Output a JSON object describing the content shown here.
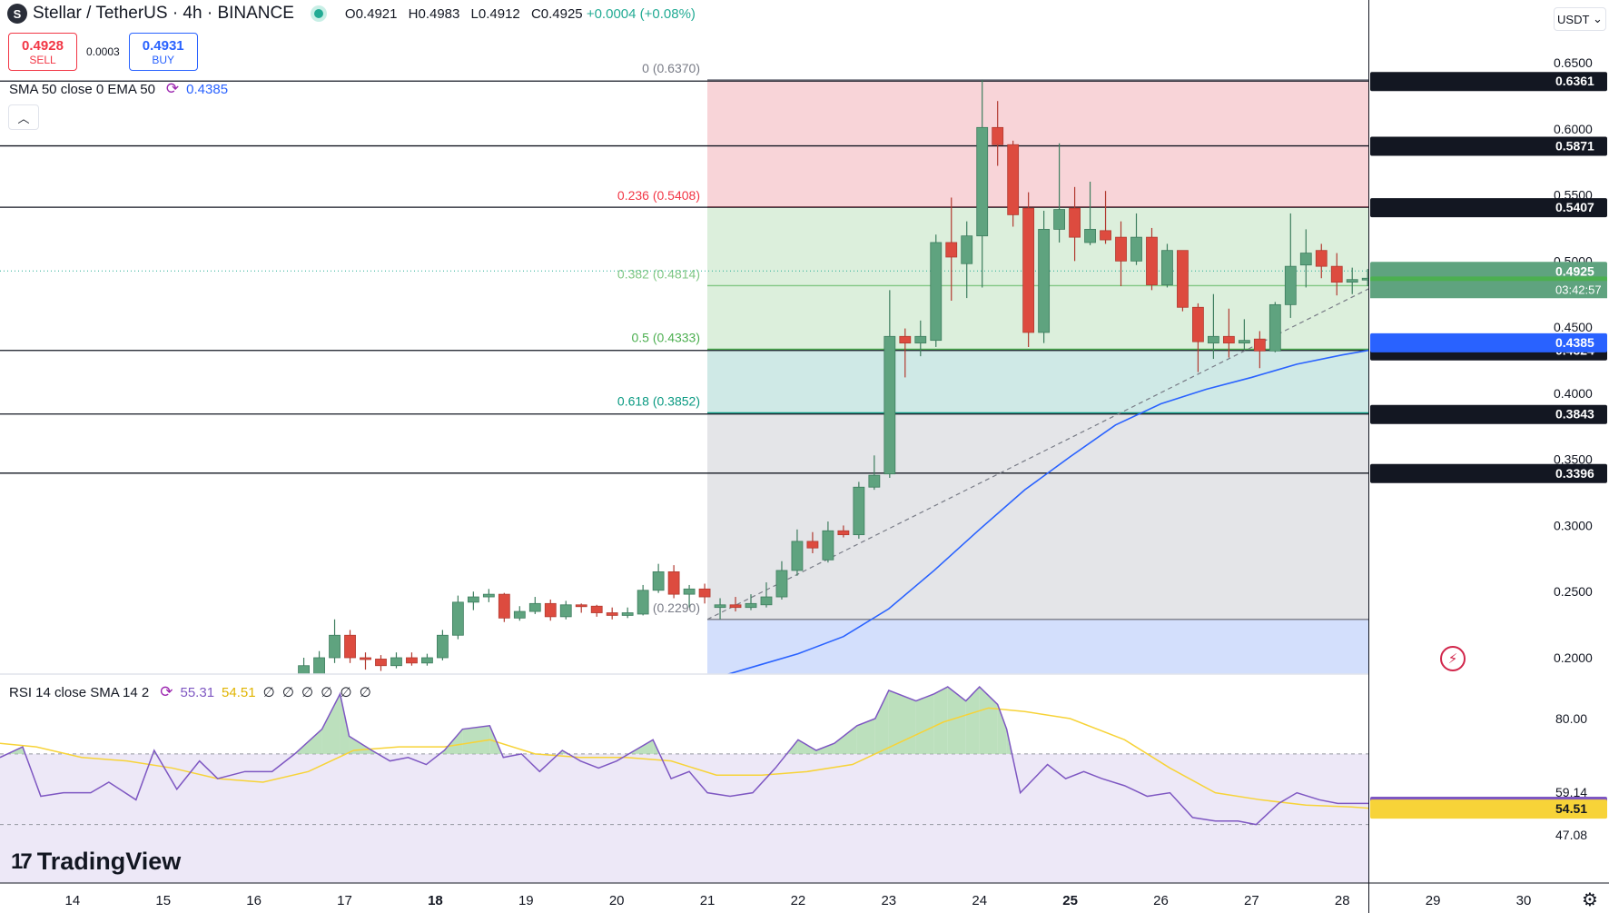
{
  "header": {
    "title": "Stellar / TetherUS · 4h · BINANCE",
    "logo_glyph": "S",
    "ohlc": {
      "o": "O0.4921",
      "h": "H0.4983",
      "l": "L0.4912",
      "c": "C0.4925",
      "chg": "+0.0004 (+0.08%)"
    }
  },
  "trade": {
    "sell_price": "0.4928",
    "sell_label": "SELL",
    "spread": "0.0003",
    "buy_price": "0.4931",
    "buy_label": "BUY"
  },
  "indicator_main": {
    "label": "SMA 50 close 0 EMA 50",
    "value": "0.4385",
    "icon": "refresh-icon"
  },
  "indicator_rsi": {
    "label": "RSI 14 close SMA 14 2",
    "rsi_value": "55.31",
    "sma_value": "54.51",
    "extras": "∅ ∅ ∅ ∅ ∅ ∅",
    "icon": "refresh-icon"
  },
  "currency": "USDT",
  "brand": "TradingView",
  "colors": {
    "up": "#5fa37f",
    "down": "#dd4b3f",
    "sma": "#2962ff",
    "rsi": "#7e57c2",
    "rsi_sma": "#f7d338",
    "fib_red": "#f8d4d8",
    "fib_green": "#dcefdc",
    "fib_teal": "#cfe9e6",
    "fib_gray": "#e4e5e8",
    "fib_blue": "#d3dffc"
  },
  "chart_data": {
    "type": "candlestick",
    "symbol": "XLM/USDT",
    "timeframe": "4h",
    "x_ticks": [
      "14",
      "15",
      "16",
      "17",
      "18",
      "19",
      "20",
      "21",
      "22",
      "23",
      "24",
      "25",
      "26",
      "27",
      "28",
      "29",
      "30"
    ],
    "y_ticks": [
      "0.6500",
      "0.6000",
      "0.5500",
      "0.5000",
      "0.4500",
      "0.4000",
      "0.3500",
      "0.3000",
      "0.2500",
      "0.2000"
    ],
    "ylim": [
      0.187,
      0.6655
    ],
    "last_price": {
      "value": "0.4925",
      "countdown": "03:42:57"
    },
    "fibonacci": [
      {
        "ratio": "0",
        "label": "0 (0.6370)",
        "price": 0.637
      },
      {
        "ratio": "0.236",
        "label": "0.236 (0.5408)",
        "price": 0.5408
      },
      {
        "ratio": "0.382",
        "label": "0.382 (0.4814)",
        "price": 0.4814
      },
      {
        "ratio": "0.5",
        "label": "0.5 (0.4333)",
        "price": 0.4333
      },
      {
        "ratio": "0.618",
        "label": "0.618 (0.3852)",
        "price": 0.3852
      },
      {
        "ratio": "1",
        "label": "1 (0.2290)",
        "price": 0.229
      }
    ],
    "horizontal_levels": [
      {
        "price": 0.6361,
        "label": "0.6361"
      },
      {
        "price": 0.5871,
        "label": "0.5871"
      },
      {
        "price": 0.5407,
        "label": "0.5407"
      },
      {
        "price": 0.4324,
        "label": "0.4324"
      },
      {
        "price": 0.3843,
        "label": "0.3843"
      },
      {
        "price": 0.3396,
        "label": "0.3396"
      }
    ],
    "price_tags": [
      {
        "price": 0.4925,
        "label": "0.4925",
        "kind": "last"
      },
      {
        "price": 0.4814,
        "label": "0.4814",
        "kind": "fib"
      },
      {
        "price": 0.4385,
        "label": "0.4385",
        "kind": "sma"
      }
    ],
    "trendline": [
      {
        "x": 21.0,
        "y": 0.229
      },
      {
        "x": 30.1,
        "y": 0.541
      }
    ],
    "candles": [
      {
        "x": 16.55,
        "o": 0.175,
        "h": 0.2,
        "l": 0.17,
        "c": 0.194
      },
      {
        "x": 16.72,
        "o": 0.182,
        "h": 0.205,
        "l": 0.178,
        "c": 0.2
      },
      {
        "x": 16.89,
        "o": 0.2,
        "h": 0.229,
        "l": 0.196,
        "c": 0.217
      },
      {
        "x": 17.06,
        "o": 0.217,
        "h": 0.221,
        "l": 0.196,
        "c": 0.2
      },
      {
        "x": 17.23,
        "o": 0.2,
        "h": 0.204,
        "l": 0.191,
        "c": 0.199
      },
      {
        "x": 17.4,
        "o": 0.199,
        "h": 0.202,
        "l": 0.19,
        "c": 0.194
      },
      {
        "x": 17.57,
        "o": 0.194,
        "h": 0.204,
        "l": 0.192,
        "c": 0.2
      },
      {
        "x": 17.74,
        "o": 0.2,
        "h": 0.204,
        "l": 0.194,
        "c": 0.196
      },
      {
        "x": 17.91,
        "o": 0.196,
        "h": 0.203,
        "l": 0.194,
        "c": 0.2
      },
      {
        "x": 18.08,
        "o": 0.2,
        "h": 0.221,
        "l": 0.198,
        "c": 0.217
      },
      {
        "x": 18.25,
        "o": 0.217,
        "h": 0.247,
        "l": 0.214,
        "c": 0.242
      },
      {
        "x": 18.42,
        "o": 0.242,
        "h": 0.25,
        "l": 0.236,
        "c": 0.246
      },
      {
        "x": 18.59,
        "o": 0.246,
        "h": 0.252,
        "l": 0.242,
        "c": 0.248
      },
      {
        "x": 18.76,
        "o": 0.248,
        "h": 0.249,
        "l": 0.227,
        "c": 0.23
      },
      {
        "x": 18.93,
        "o": 0.23,
        "h": 0.239,
        "l": 0.228,
        "c": 0.235
      },
      {
        "x": 19.1,
        "o": 0.235,
        "h": 0.246,
        "l": 0.233,
        "c": 0.241
      },
      {
        "x": 19.27,
        "o": 0.241,
        "h": 0.244,
        "l": 0.228,
        "c": 0.231
      },
      {
        "x": 19.44,
        "o": 0.231,
        "h": 0.243,
        "l": 0.229,
        "c": 0.24
      },
      {
        "x": 19.61,
        "o": 0.24,
        "h": 0.241,
        "l": 0.234,
        "c": 0.239
      },
      {
        "x": 19.78,
        "o": 0.239,
        "h": 0.24,
        "l": 0.231,
        "c": 0.234
      },
      {
        "x": 19.95,
        "o": 0.234,
        "h": 0.238,
        "l": 0.229,
        "c": 0.232
      },
      {
        "x": 20.12,
        "o": 0.232,
        "h": 0.238,
        "l": 0.23,
        "c": 0.234
      },
      {
        "x": 20.29,
        "o": 0.233,
        "h": 0.255,
        "l": 0.232,
        "c": 0.251
      },
      {
        "x": 20.46,
        "o": 0.251,
        "h": 0.271,
        "l": 0.249,
        "c": 0.265
      },
      {
        "x": 20.63,
        "o": 0.265,
        "h": 0.27,
        "l": 0.245,
        "c": 0.248
      },
      {
        "x": 20.8,
        "o": 0.248,
        "h": 0.255,
        "l": 0.238,
        "c": 0.252
      },
      {
        "x": 20.97,
        "o": 0.252,
        "h": 0.256,
        "l": 0.241,
        "c": 0.246
      },
      {
        "x": 21.14,
        "o": 0.238,
        "h": 0.245,
        "l": 0.229,
        "c": 0.24
      },
      {
        "x": 21.31,
        "o": 0.24,
        "h": 0.246,
        "l": 0.235,
        "c": 0.238
      },
      {
        "x": 21.48,
        "o": 0.238,
        "h": 0.248,
        "l": 0.236,
        "c": 0.241
      },
      {
        "x": 21.65,
        "o": 0.24,
        "h": 0.257,
        "l": 0.238,
        "c": 0.246
      },
      {
        "x": 21.82,
        "o": 0.246,
        "h": 0.273,
        "l": 0.244,
        "c": 0.266
      },
      {
        "x": 21.99,
        "o": 0.266,
        "h": 0.297,
        "l": 0.262,
        "c": 0.288
      },
      {
        "x": 22.16,
        "o": 0.288,
        "h": 0.295,
        "l": 0.279,
        "c": 0.283
      },
      {
        "x": 22.33,
        "o": 0.274,
        "h": 0.303,
        "l": 0.272,
        "c": 0.296
      },
      {
        "x": 22.5,
        "o": 0.296,
        "h": 0.3,
        "l": 0.291,
        "c": 0.293
      },
      {
        "x": 22.67,
        "o": 0.293,
        "h": 0.333,
        "l": 0.29,
        "c": 0.329
      },
      {
        "x": 22.84,
        "o": 0.329,
        "h": 0.353,
        "l": 0.327,
        "c": 0.338
      },
      {
        "x": 23.01,
        "o": 0.339,
        "h": 0.478,
        "l": 0.336,
        "c": 0.443
      },
      {
        "x": 23.18,
        "o": 0.443,
        "h": 0.449,
        "l": 0.412,
        "c": 0.438
      },
      {
        "x": 23.35,
        "o": 0.438,
        "h": 0.455,
        "l": 0.428,
        "c": 0.443
      },
      {
        "x": 23.52,
        "o": 0.44,
        "h": 0.52,
        "l": 0.435,
        "c": 0.514
      },
      {
        "x": 23.69,
        "o": 0.514,
        "h": 0.548,
        "l": 0.47,
        "c": 0.503
      },
      {
        "x": 23.86,
        "o": 0.498,
        "h": 0.53,
        "l": 0.472,
        "c": 0.519
      },
      {
        "x": 24.03,
        "o": 0.519,
        "h": 0.637,
        "l": 0.48,
        "c": 0.601
      },
      {
        "x": 24.2,
        "o": 0.601,
        "h": 0.621,
        "l": 0.572,
        "c": 0.588
      },
      {
        "x": 24.37,
        "o": 0.588,
        "h": 0.591,
        "l": 0.526,
        "c": 0.535
      },
      {
        "x": 24.54,
        "o": 0.54,
        "h": 0.552,
        "l": 0.435,
        "c": 0.446
      },
      {
        "x": 24.71,
        "o": 0.446,
        "h": 0.538,
        "l": 0.438,
        "c": 0.524
      },
      {
        "x": 24.88,
        "o": 0.524,
        "h": 0.589,
        "l": 0.514,
        "c": 0.539
      },
      {
        "x": 25.05,
        "o": 0.54,
        "h": 0.556,
        "l": 0.5,
        "c": 0.518
      },
      {
        "x": 25.22,
        "o": 0.514,
        "h": 0.56,
        "l": 0.512,
        "c": 0.524
      },
      {
        "x": 25.39,
        "o": 0.523,
        "h": 0.553,
        "l": 0.513,
        "c": 0.516
      },
      {
        "x": 25.56,
        "o": 0.518,
        "h": 0.53,
        "l": 0.481,
        "c": 0.5
      },
      {
        "x": 25.73,
        "o": 0.5,
        "h": 0.536,
        "l": 0.497,
        "c": 0.518
      },
      {
        "x": 25.9,
        "o": 0.518,
        "h": 0.525,
        "l": 0.478,
        "c": 0.482
      },
      {
        "x": 26.07,
        "o": 0.482,
        "h": 0.513,
        "l": 0.48,
        "c": 0.508
      },
      {
        "x": 26.24,
        "o": 0.508,
        "h": 0.508,
        "l": 0.462,
        "c": 0.465
      },
      {
        "x": 26.41,
        "o": 0.465,
        "h": 0.468,
        "l": 0.416,
        "c": 0.439
      },
      {
        "x": 26.58,
        "o": 0.438,
        "h": 0.475,
        "l": 0.426,
        "c": 0.443
      },
      {
        "x": 26.75,
        "o": 0.443,
        "h": 0.464,
        "l": 0.427,
        "c": 0.438
      },
      {
        "x": 26.92,
        "o": 0.438,
        "h": 0.456,
        "l": 0.433,
        "c": 0.44
      },
      {
        "x": 27.09,
        "o": 0.441,
        "h": 0.447,
        "l": 0.419,
        "c": 0.432
      },
      {
        "x": 27.26,
        "o": 0.432,
        "h": 0.469,
        "l": 0.431,
        "c": 0.467
      },
      {
        "x": 27.43,
        "o": 0.467,
        "h": 0.536,
        "l": 0.457,
        "c": 0.496
      },
      {
        "x": 27.6,
        "o": 0.497,
        "h": 0.524,
        "l": 0.48,
        "c": 0.506
      },
      {
        "x": 27.77,
        "o": 0.508,
        "h": 0.513,
        "l": 0.487,
        "c": 0.496
      },
      {
        "x": 27.94,
        "o": 0.496,
        "h": 0.506,
        "l": 0.474,
        "c": 0.484
      },
      {
        "x": 28.11,
        "o": 0.484,
        "h": 0.495,
        "l": 0.475,
        "c": 0.486
      },
      {
        "x": 28.28,
        "o": 0.486,
        "h": 0.494,
        "l": 0.481,
        "c": 0.487
      },
      {
        "x": 28.45,
        "o": 0.487,
        "h": 0.489,
        "l": 0.473,
        "c": 0.484
      },
      {
        "x": 28.62,
        "o": 0.481,
        "h": 0.485,
        "l": 0.462,
        "c": 0.464
      },
      {
        "x": 28.79,
        "o": 0.464,
        "h": 0.48,
        "l": 0.462,
        "c": 0.478
      },
      {
        "x": 28.96,
        "o": 0.478,
        "h": 0.506,
        "l": 0.476,
        "c": 0.499
      },
      {
        "x": 29.13,
        "o": 0.499,
        "h": 0.511,
        "l": 0.489,
        "c": 0.491
      },
      {
        "x": 29.3,
        "o": 0.4921,
        "h": 0.4983,
        "l": 0.4912,
        "c": 0.4925
      }
    ],
    "sma50": [
      {
        "x": 21.2,
        "y": 0.187
      },
      {
        "x": 21.5,
        "y": 0.193
      },
      {
        "x": 22.0,
        "y": 0.203
      },
      {
        "x": 22.5,
        "y": 0.216
      },
      {
        "x": 23.0,
        "y": 0.237
      },
      {
        "x": 23.5,
        "y": 0.266
      },
      {
        "x": 24.0,
        "y": 0.297
      },
      {
        "x": 24.5,
        "y": 0.327
      },
      {
        "x": 25.0,
        "y": 0.352
      },
      {
        "x": 25.5,
        "y": 0.376
      },
      {
        "x": 26.0,
        "y": 0.392
      },
      {
        "x": 26.5,
        "y": 0.403
      },
      {
        "x": 27.0,
        "y": 0.412
      },
      {
        "x": 27.5,
        "y": 0.422
      },
      {
        "x": 28.0,
        "y": 0.429
      },
      {
        "x": 28.5,
        "y": 0.435
      },
      {
        "x": 29.0,
        "y": 0.439
      },
      {
        "x": 29.4,
        "y": 0.4385
      }
    ],
    "rsi_panel": {
      "y_ticks": [
        "80.00",
        "59.14",
        "47.08"
      ],
      "ylim": [
        29.5,
        92.0
      ],
      "band_upper": 70,
      "band_lower": 50,
      "band_bottom": 30,
      "tags": [
        {
          "value": 55.31,
          "label": "55.31",
          "kind": "rsi"
        },
        {
          "value": 54.51,
          "label": "54.51",
          "kind": "sma"
        }
      ],
      "rsi": [
        {
          "x": 13.2,
          "y": 69
        },
        {
          "x": 13.45,
          "y": 72
        },
        {
          "x": 13.65,
          "y": 58
        },
        {
          "x": 13.9,
          "y": 59
        },
        {
          "x": 14.2,
          "y": 59
        },
        {
          "x": 14.4,
          "y": 62
        },
        {
          "x": 14.7,
          "y": 57
        },
        {
          "x": 14.9,
          "y": 71
        },
        {
          "x": 15.15,
          "y": 60
        },
        {
          "x": 15.4,
          "y": 68
        },
        {
          "x": 15.6,
          "y": 63
        },
        {
          "x": 15.9,
          "y": 65
        },
        {
          "x": 16.2,
          "y": 65
        },
        {
          "x": 16.45,
          "y": 70
        },
        {
          "x": 16.75,
          "y": 77
        },
        {
          "x": 16.95,
          "y": 87
        },
        {
          "x": 17.05,
          "y": 75
        },
        {
          "x": 17.3,
          "y": 71
        },
        {
          "x": 17.5,
          "y": 68
        },
        {
          "x": 17.7,
          "y": 69
        },
        {
          "x": 17.9,
          "y": 67
        },
        {
          "x": 18.1,
          "y": 71
        },
        {
          "x": 18.3,
          "y": 77
        },
        {
          "x": 18.6,
          "y": 78
        },
        {
          "x": 18.75,
          "y": 69
        },
        {
          "x": 18.95,
          "y": 70
        },
        {
          "x": 19.15,
          "y": 65
        },
        {
          "x": 19.4,
          "y": 71
        },
        {
          "x": 19.6,
          "y": 68
        },
        {
          "x": 19.8,
          "y": 66
        },
        {
          "x": 20.0,
          "y": 68
        },
        {
          "x": 20.2,
          "y": 71
        },
        {
          "x": 20.4,
          "y": 74
        },
        {
          "x": 20.6,
          "y": 63
        },
        {
          "x": 20.8,
          "y": 65
        },
        {
          "x": 21.0,
          "y": 59
        },
        {
          "x": 21.25,
          "y": 58
        },
        {
          "x": 21.5,
          "y": 59
        },
        {
          "x": 21.75,
          "y": 66
        },
        {
          "x": 22.0,
          "y": 74
        },
        {
          "x": 22.2,
          "y": 71
        },
        {
          "x": 22.4,
          "y": 73
        },
        {
          "x": 22.65,
          "y": 78
        },
        {
          "x": 22.85,
          "y": 80
        },
        {
          "x": 23.0,
          "y": 88
        },
        {
          "x": 23.3,
          "y": 85
        },
        {
          "x": 23.5,
          "y": 87
        },
        {
          "x": 23.65,
          "y": 89
        },
        {
          "x": 23.85,
          "y": 85
        },
        {
          "x": 24.0,
          "y": 89
        },
        {
          "x": 24.2,
          "y": 84
        },
        {
          "x": 24.3,
          "y": 77
        },
        {
          "x": 24.45,
          "y": 59
        },
        {
          "x": 24.75,
          "y": 67
        },
        {
          "x": 24.95,
          "y": 63
        },
        {
          "x": 25.15,
          "y": 65
        },
        {
          "x": 25.35,
          "y": 63
        },
        {
          "x": 25.6,
          "y": 61
        },
        {
          "x": 25.85,
          "y": 58
        },
        {
          "x": 26.1,
          "y": 59
        },
        {
          "x": 26.35,
          "y": 52
        },
        {
          "x": 26.6,
          "y": 51
        },
        {
          "x": 26.85,
          "y": 51
        },
        {
          "x": 27.05,
          "y": 50
        },
        {
          "x": 27.3,
          "y": 56
        },
        {
          "x": 27.5,
          "y": 59
        },
        {
          "x": 27.75,
          "y": 57
        },
        {
          "x": 27.95,
          "y": 56
        },
        {
          "x": 28.2,
          "y": 56
        },
        {
          "x": 28.45,
          "y": 56
        },
        {
          "x": 28.6,
          "y": 53
        },
        {
          "x": 28.8,
          "y": 55
        },
        {
          "x": 28.95,
          "y": 57
        },
        {
          "x": 29.1,
          "y": 55
        },
        {
          "x": 29.3,
          "y": 55.3
        }
      ],
      "rsi_sma": [
        {
          "x": 13.2,
          "y": 73
        },
        {
          "x": 13.6,
          "y": 72
        },
        {
          "x": 14.1,
          "y": 69
        },
        {
          "x": 14.6,
          "y": 68
        },
        {
          "x": 15.1,
          "y": 66
        },
        {
          "x": 15.6,
          "y": 63
        },
        {
          "x": 16.1,
          "y": 62
        },
        {
          "x": 16.6,
          "y": 65
        },
        {
          "x": 17.1,
          "y": 71
        },
        {
          "x": 17.6,
          "y": 72
        },
        {
          "x": 18.1,
          "y": 72
        },
        {
          "x": 18.6,
          "y": 74
        },
        {
          "x": 19.1,
          "y": 70
        },
        {
          "x": 19.6,
          "y": 69
        },
        {
          "x": 20.1,
          "y": 69
        },
        {
          "x": 20.6,
          "y": 68
        },
        {
          "x": 21.1,
          "y": 64
        },
        {
          "x": 21.6,
          "y": 64
        },
        {
          "x": 22.1,
          "y": 65
        },
        {
          "x": 22.6,
          "y": 67
        },
        {
          "x": 23.1,
          "y": 73
        },
        {
          "x": 23.6,
          "y": 79
        },
        {
          "x": 24.1,
          "y": 83
        },
        {
          "x": 24.5,
          "y": 82
        },
        {
          "x": 25.0,
          "y": 80
        },
        {
          "x": 25.6,
          "y": 74
        },
        {
          "x": 26.1,
          "y": 66
        },
        {
          "x": 26.6,
          "y": 59
        },
        {
          "x": 27.1,
          "y": 57
        },
        {
          "x": 27.6,
          "y": 55.5
        },
        {
          "x": 28.1,
          "y": 55
        },
        {
          "x": 28.6,
          "y": 54
        },
        {
          "x": 29.3,
          "y": 54.5
        }
      ]
    }
  }
}
